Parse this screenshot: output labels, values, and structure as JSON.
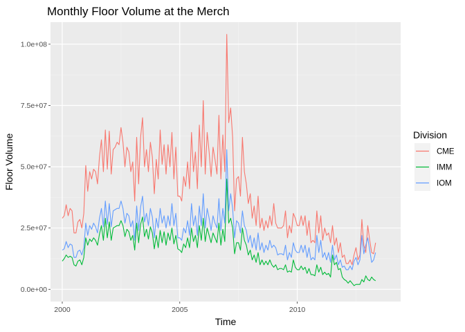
{
  "chart_data": {
    "type": "line",
    "title": "Monthly Floor Volume at the Merch",
    "xlabel": "Time",
    "ylabel": "Floor Volume",
    "x_start": "2000-01",
    "x_frequency": "monthly",
    "xlim": [
      1999.5,
      2014.4
    ],
    "ylim": [
      -5000000,
      109000000
    ],
    "x_ticks": [
      2000,
      2005,
      2010
    ],
    "x_tick_labels": [
      "2000",
      "2005",
      "2010"
    ],
    "y_ticks": [
      0,
      25000000,
      50000000,
      75000000,
      100000000
    ],
    "y_tick_labels": [
      "0.0e+00",
      "2.5e+07",
      "5.0e+07",
      "7.5e+07",
      "1.0e+08"
    ],
    "grid": true,
    "panel_background": "#ebebeb",
    "legend": {
      "title": "Division",
      "position": "right"
    },
    "series": [
      {
        "name": "CME",
        "color": "#f8766d",
        "values": [
          29,
          30,
          34.5,
          30,
          33,
          32,
          23,
          23,
          27.5,
          28.5,
          25,
          31,
          50.5,
          40,
          48,
          45,
          49,
          48,
          43,
          54,
          61,
          48,
          65,
          49,
          64.5,
          47,
          57,
          58,
          60,
          59,
          66,
          60,
          50,
          58,
          56,
          48,
          52,
          36,
          62,
          43,
          62,
          70,
          50,
          57,
          48,
          60,
          54,
          39,
          53,
          45,
          65,
          51,
          59,
          47,
          59,
          50,
          64,
          45,
          58,
          38,
          38,
          36,
          46,
          42,
          52,
          41,
          64,
          48,
          56,
          41,
          67,
          50,
          77,
          47,
          64,
          56,
          46,
          58,
          53,
          47,
          71,
          45,
          63,
          48,
          104,
          68,
          74,
          62,
          32,
          45,
          46,
          38,
          62,
          48,
          43,
          35,
          39,
          29,
          34,
          26,
          38,
          25,
          29,
          24,
          28,
          25,
          30,
          26,
          35,
          27,
          25,
          25,
          25,
          26,
          32,
          21,
          26,
          23,
          31,
          29,
          26,
          26,
          30,
          26,
          30,
          22,
          28,
          19,
          20,
          19,
          32,
          23,
          30,
          20,
          25,
          22,
          23,
          19,
          26,
          18,
          21,
          15,
          19,
          13,
          14,
          10.5,
          10.5,
          12,
          10,
          14,
          17,
          12,
          14,
          28.5,
          18,
          15,
          26,
          20,
          15,
          14.5,
          19
        ]
      },
      {
        "name": "IMM",
        "color": "#00ba38",
        "values": [
          11.5,
          12.5,
          14,
          13,
          13.5,
          13,
          10,
          9.5,
          11.5,
          12,
          10,
          13,
          21,
          18,
          20.5,
          19.5,
          21,
          20,
          18,
          22.5,
          26,
          20,
          29,
          21,
          27.5,
          20,
          25,
          25.5,
          26,
          26,
          28,
          26,
          21.5,
          24.5,
          23.5,
          20,
          22,
          16,
          27,
          19,
          26.5,
          29.5,
          21.5,
          24.5,
          20.5,
          25.5,
          23,
          16.5,
          22,
          17,
          24,
          19,
          23.5,
          18,
          23,
          20,
          25,
          18.5,
          22,
          16.5,
          16,
          15,
          18.5,
          17,
          21,
          17,
          25,
          19.5,
          22,
          17,
          26,
          20,
          29,
          19.5,
          25,
          22,
          19,
          23,
          21,
          19,
          27,
          18,
          24.5,
          19.5,
          45,
          27,
          29,
          25,
          14.5,
          19,
          19,
          16,
          25,
          20,
          18,
          14,
          16,
          12,
          14,
          11,
          15,
          10,
          12,
          10,
          11.5,
          10,
          12,
          10,
          9,
          10,
          8,
          8.5,
          8.5,
          8,
          10,
          7,
          7.5,
          7,
          12,
          9,
          8,
          8,
          9.5,
          8,
          9,
          6.5,
          8.5,
          6,
          6,
          5.5,
          10,
          7,
          9,
          6,
          7,
          6,
          6.5,
          5,
          14,
          10,
          11,
          8,
          8.5,
          5,
          4,
          3.5,
          2.5,
          3.5,
          2.5,
          1.5,
          2,
          2,
          2,
          4,
          3,
          5.5,
          4,
          3.5,
          5,
          4,
          3.5
        ]
      },
      {
        "name": "IOM",
        "color": "#619cff",
        "values": [
          16,
          16.5,
          19.5,
          17,
          18.5,
          18,
          13,
          13,
          15.5,
          16,
          14,
          17,
          27,
          22,
          26,
          24.5,
          27,
          25.5,
          23,
          29,
          33,
          25.5,
          36,
          26.5,
          35,
          25.5,
          32,
          32.5,
          33,
          33,
          36,
          33,
          27,
          31,
          30,
          25.5,
          28,
          20,
          34,
          24,
          33.5,
          38,
          27.5,
          31,
          26,
          33,
          29.5,
          21,
          29,
          25,
          33,
          27,
          30,
          25,
          30,
          26,
          35,
          26,
          31,
          21,
          21,
          20,
          25,
          23,
          28,
          22,
          35,
          26,
          30,
          22,
          34,
          26,
          39,
          25,
          33,
          29,
          24,
          30,
          27,
          25,
          37,
          24,
          33,
          27,
          57,
          32,
          39,
          33,
          21,
          28,
          27,
          23,
          32,
          26,
          24,
          19,
          22,
          17,
          21,
          16,
          23,
          16,
          19,
          15,
          18,
          16,
          20,
          17,
          18,
          17,
          14,
          14.5,
          14.5,
          14,
          18,
          12,
          15,
          13,
          19,
          16,
          15,
          15,
          18,
          15,
          18,
          13,
          17,
          12,
          13,
          12,
          22,
          15,
          20,
          13,
          15,
          12,
          15,
          11,
          18,
          12,
          14,
          10,
          12,
          9,
          9.5,
          8,
          8,
          9.5,
          8,
          11.5,
          13,
          10,
          12,
          22,
          14.5,
          18,
          21,
          16,
          11,
          12,
          15
        ]
      }
    ]
  }
}
